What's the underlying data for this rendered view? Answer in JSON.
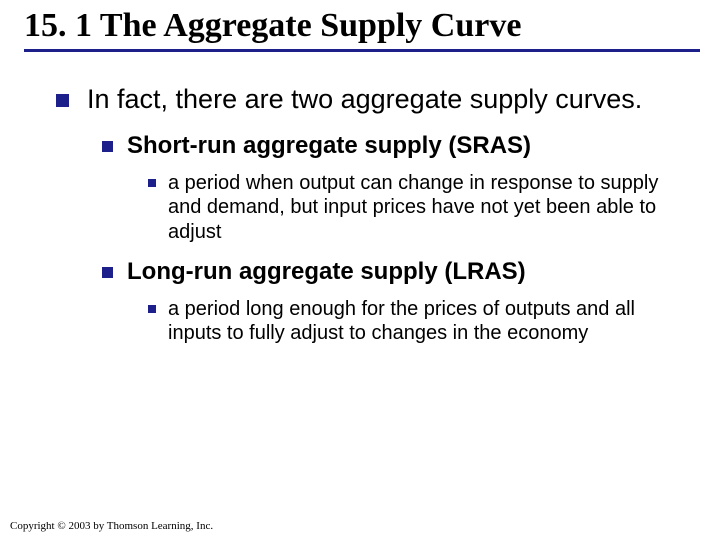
{
  "title": "15. 1 The Aggregate Supply Curve",
  "rule_color": "#1d1f8a",
  "bullet_color": "#1d1f8a",
  "background_color": "#ffffff",
  "fonts": {
    "title_family": "Times New Roman",
    "body_family": "Arial",
    "title_size_pt": 34,
    "lvl1_size_pt": 27,
    "lvl2_size_pt": 24,
    "lvl3_size_pt": 20,
    "footer_size_pt": 11
  },
  "content": {
    "lvl1": "In fact, there are two aggregate supply curves.",
    "items": [
      {
        "heading": "Short-run aggregate supply (SRAS)",
        "detail": "a period when output can change in response to supply and demand, but input prices have not yet been able to adjust"
      },
      {
        "heading": "Long-run aggregate supply (LRAS)",
        "detail": "a period long enough for the prices of outputs and all inputs to fully adjust to changes in the economy"
      }
    ]
  },
  "footer": "Copyright © 2003 by Thomson Learning, Inc."
}
